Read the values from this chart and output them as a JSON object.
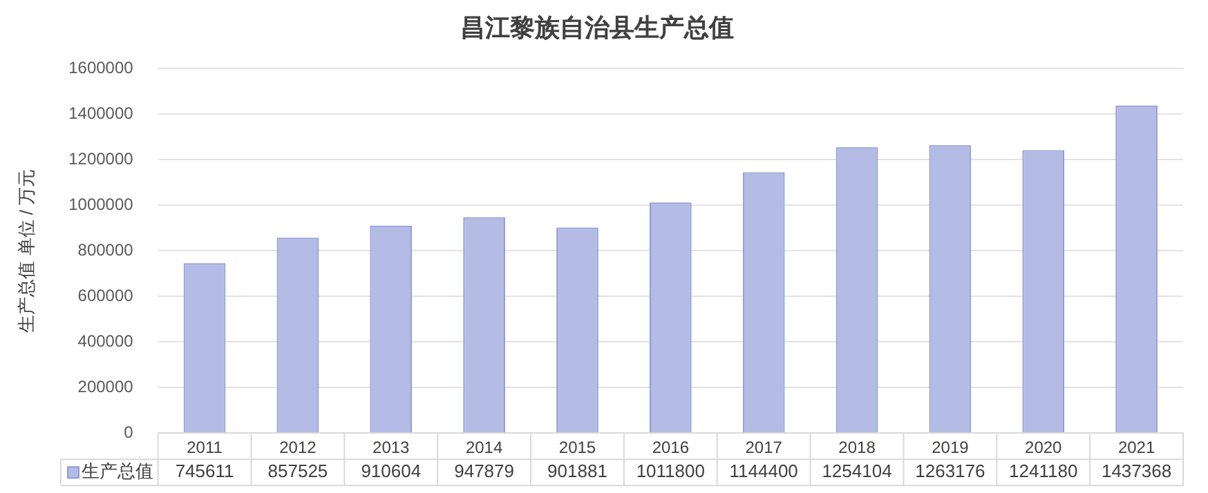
{
  "chart_data": {
    "type": "bar",
    "title": "昌江黎族自治县生产总值",
    "ylabel": "生产总值 单位 / 万元",
    "categories": [
      "2011",
      "2012",
      "2013",
      "2014",
      "2015",
      "2016",
      "2017",
      "2018",
      "2019",
      "2020",
      "2021"
    ],
    "series": [
      {
        "name": "生产总值",
        "color": "#b4bbe4",
        "values": [
          745611,
          857525,
          910604,
          947879,
          901881,
          1011800,
          1144400,
          1254104,
          1263176,
          1241180,
          1437368
        ]
      }
    ],
    "ylim": [
      0,
      1600000
    ],
    "yticks": [
      0,
      200000,
      400000,
      600000,
      800000,
      1000000,
      1200000,
      1400000,
      1600000
    ],
    "grid": "y",
    "legend": "bottom left",
    "data_labels": true
  }
}
